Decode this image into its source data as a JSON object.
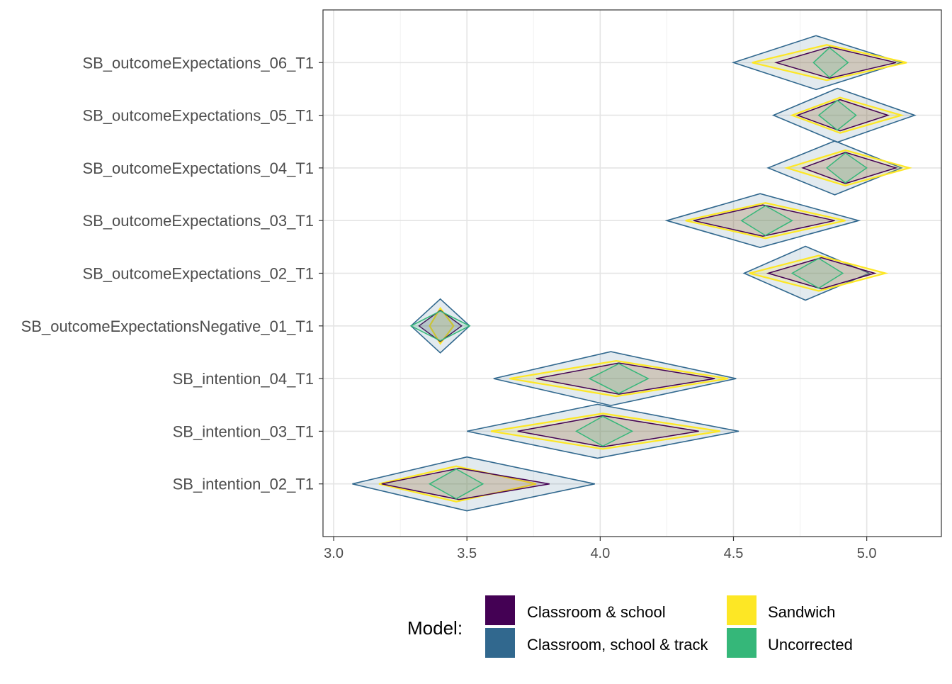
{
  "chart_data": {
    "type": "diamond-interval",
    "title": "",
    "xlabel": "",
    "ylabel": "",
    "xlim": [
      2.96,
      5.28
    ],
    "x_ticks": [
      3.0,
      3.5,
      4.0,
      4.5,
      5.0
    ],
    "x_tick_labels": [
      "3.0",
      "3.5",
      "4.0",
      "4.5",
      "5.0"
    ],
    "grid": true,
    "legend_position": "bottom",
    "legend": {
      "title": "Model:",
      "entries": [
        {
          "label": "Classroom & school",
          "color": "#440154"
        },
        {
          "label": "Classroom, school & track",
          "color": "#31688E"
        },
        {
          "label": "Sandwich",
          "color": "#FDE725"
        },
        {
          "label": "Uncorrected",
          "color": "#35B779"
        }
      ]
    },
    "categories": [
      "SB_outcomeExpectations_06_T1",
      "SB_outcomeExpectations_05_T1",
      "SB_outcomeExpectations_04_T1",
      "SB_outcomeExpectations_03_T1",
      "SB_outcomeExpectations_02_T1",
      "SB_outcomeExpectationsNegative_01_T1",
      "SB_intention_04_T1",
      "SB_intention_03_T1",
      "SB_intention_02_T1"
    ],
    "series": [
      {
        "name": "Classroom, school & track",
        "color": "#31688E",
        "values": [
          {
            "lo": 4.5,
            "mid": 4.81,
            "hi": 5.13
          },
          {
            "lo": 4.65,
            "mid": 4.89,
            "hi": 5.18
          },
          {
            "lo": 4.63,
            "mid": 4.88,
            "hi": 5.13
          },
          {
            "lo": 4.25,
            "mid": 4.6,
            "hi": 4.97
          },
          {
            "lo": 4.54,
            "mid": 4.77,
            "hi": 5.01
          },
          {
            "lo": 3.29,
            "mid": 3.4,
            "hi": 3.51
          },
          {
            "lo": 3.6,
            "mid": 4.04,
            "hi": 4.51
          },
          {
            "lo": 3.5,
            "mid": 3.99,
            "hi": 4.52
          },
          {
            "lo": 3.07,
            "mid": 3.5,
            "hi": 3.98
          }
        ]
      },
      {
        "name": "Sandwich",
        "color": "#FDE725",
        "values": [
          {
            "lo": 4.57,
            "mid": 4.85,
            "hi": 5.15
          },
          {
            "lo": 4.72,
            "mid": 4.9,
            "hi": 5.13
          },
          {
            "lo": 4.7,
            "mid": 4.92,
            "hi": 5.16
          },
          {
            "lo": 4.32,
            "mid": 4.62,
            "hi": 4.92
          },
          {
            "lo": 4.56,
            "mid": 4.82,
            "hi": 5.07
          },
          {
            "lo": 3.36,
            "mid": 3.4,
            "hi": 3.45
          },
          {
            "lo": 3.66,
            "mid": 4.06,
            "hi": 4.48
          },
          {
            "lo": 3.59,
            "mid": 4.01,
            "hi": 4.45
          },
          {
            "lo": 3.17,
            "mid": 3.46,
            "hi": 3.76
          }
        ]
      },
      {
        "name": "Classroom & school",
        "color": "#440154",
        "values": [
          {
            "lo": 4.66,
            "mid": 4.86,
            "hi": 5.11
          },
          {
            "lo": 4.74,
            "mid": 4.9,
            "hi": 5.08
          },
          {
            "lo": 4.76,
            "mid": 4.92,
            "hi": 5.11
          },
          {
            "lo": 4.35,
            "mid": 4.61,
            "hi": 4.88
          },
          {
            "lo": 4.63,
            "mid": 4.83,
            "hi": 5.03
          },
          {
            "lo": 3.32,
            "mid": 3.4,
            "hi": 3.48
          },
          {
            "lo": 3.76,
            "mid": 4.07,
            "hi": 4.43
          },
          {
            "lo": 3.69,
            "mid": 4.01,
            "hi": 4.37
          },
          {
            "lo": 3.18,
            "mid": 3.47,
            "hi": 3.81
          }
        ]
      },
      {
        "name": "Uncorrected",
        "color": "#35B779",
        "values": [
          {
            "lo": 4.8,
            "mid": 4.86,
            "hi": 4.93
          },
          {
            "lo": 4.82,
            "mid": 4.89,
            "hi": 4.96
          },
          {
            "lo": 4.85,
            "mid": 4.92,
            "hi": 5.0
          },
          {
            "lo": 4.53,
            "mid": 4.62,
            "hi": 4.72
          },
          {
            "lo": 4.72,
            "mid": 4.82,
            "hi": 4.91
          },
          {
            "lo": 3.29,
            "mid": 3.4,
            "hi": 3.51
          },
          {
            "lo": 3.96,
            "mid": 4.07,
            "hi": 4.18
          },
          {
            "lo": 3.91,
            "mid": 4.01,
            "hi": 4.12
          },
          {
            "lo": 3.36,
            "mid": 3.46,
            "hi": 3.56
          }
        ]
      }
    ]
  }
}
